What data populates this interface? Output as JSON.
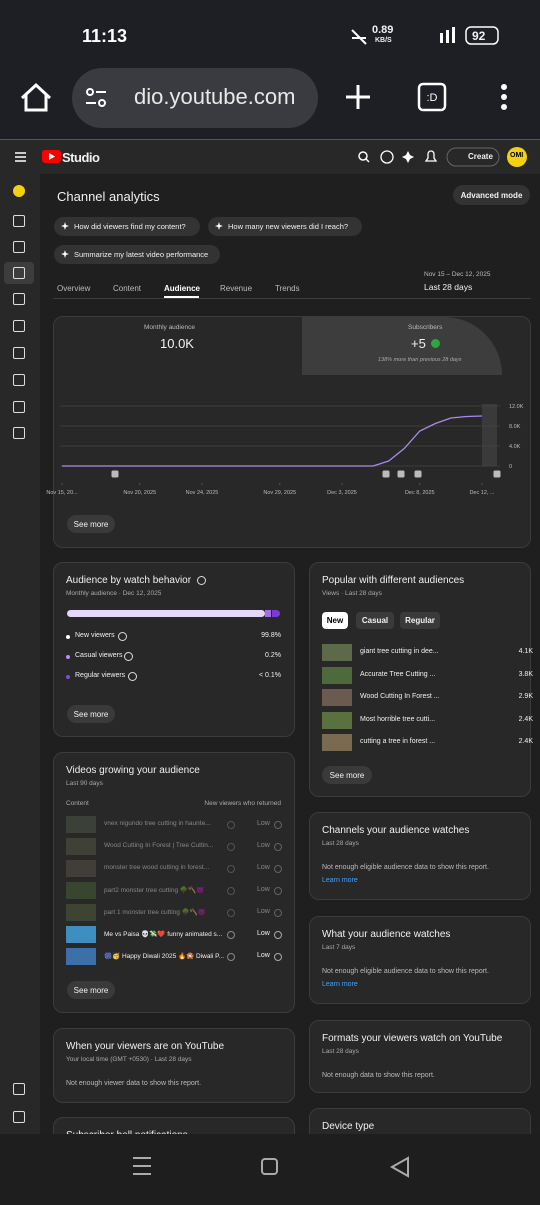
{
  "status_bar": {
    "time": "11:13",
    "speed": "0.89",
    "speed_unit": "KB/S",
    "battery": "92"
  },
  "browser": {
    "url": "dio.youtube.com"
  },
  "header": {
    "brand": "Studio",
    "create": "Create",
    "avatar": "OMI"
  },
  "page": {
    "title": "Channel analytics",
    "advanced": "Advanced mode",
    "prompts": [
      "How did viewers find my content?",
      "How many new viewers did I reach?",
      "Summarize my latest video performance"
    ],
    "tabs": [
      "Overview",
      "Content",
      "Audience",
      "Revenue",
      "Trends"
    ],
    "date_range": "Nov 15 – Dec 12, 2025",
    "period": "Last 28 days"
  },
  "overview": {
    "metric_label": "Monthly audience",
    "metric_value": "10.0K",
    "subs_label": "Subscribers",
    "subs_value": "+5",
    "subs_note": "138% more than previous 28 days",
    "see_more": "See more"
  },
  "chart_data": {
    "type": "line",
    "color": "#a98be8",
    "values": [
      0,
      0,
      0,
      0,
      0,
      0,
      0,
      0,
      0,
      0,
      0,
      0,
      0,
      0,
      0,
      0,
      0,
      0,
      0,
      0,
      0,
      1000,
      3500,
      7000,
      8500,
      9600,
      9900,
      10000
    ],
    "xlim": [
      0,
      27
    ],
    "xticks": [
      {
        "value": 0,
        "label": "Nov 15, 20..."
      },
      {
        "value": 5,
        "label": "Nov 20, 2025"
      },
      {
        "value": 9,
        "label": "Nov 24, 2025"
      },
      {
        "value": 14,
        "label": "Nov 29, 2025"
      },
      {
        "value": 18,
        "label": "Dec 3, 2025"
      },
      {
        "value": 23,
        "label": "Dec 8, 2025"
      },
      {
        "value": 27,
        "label": "Dec 12, ..."
      }
    ],
    "ylim": [
      0,
      12000
    ],
    "yticks": [
      0,
      {
        "value": 4000,
        "label": "4.0K"
      },
      {
        "value": 8000,
        "label": "8.0K"
      },
      {
        "value": 12000,
        "label": "12.0K"
      }
    ],
    "grid": true
  },
  "watch_behavior": {
    "title": "Audience by watch behavior",
    "subtitle": "Monthly audience · Dec 12, 2025",
    "rows": [
      {
        "name": "New viewers",
        "value": "99.8%"
      },
      {
        "name": "Casual viewers",
        "value": "0.2%"
      },
      {
        "name": "Regular viewers",
        "value": "< 0.1%"
      }
    ],
    "see_more": "See more"
  },
  "popular": {
    "title": "Popular with different audiences",
    "subtitle": "Views · Last 28 days",
    "filters": [
      "New",
      "Casual",
      "Regular"
    ],
    "items": [
      "giant tree cutting in dee...",
      "Accurate Tree Cutting ...",
      "Wood Cutting In Forest ...",
      "Most horrible tree cutti...",
      "cutting a tree in forest ..."
    ],
    "values": [
      4100,
      3800,
      2900,
      2400,
      2400
    ],
    "value_labels": [
      "4.1K",
      "3.8K",
      "2.9K",
      "2.4K",
      "2.4K"
    ],
    "see_more": "See more"
  },
  "videos_growing": {
    "title": "Videos growing your audience",
    "subtitle": "Last 90 days",
    "col_content": "Content",
    "col_metric": "New viewers who returned",
    "rows": [
      {
        "title": "vnex nigundo tree cutting in haunte...",
        "status": "Low"
      },
      {
        "title": "Wood Cutting In Forest | Tree Cuttin...",
        "status": "Low"
      },
      {
        "title": "monster tree wood cutting in forest...",
        "status": "Low"
      },
      {
        "title": "part2 monster tree cutting 🌳🪓😈",
        "status": "Low"
      },
      {
        "title": "part 1 monster tree cutting 🌳🪓😈",
        "status": "Low"
      },
      {
        "title": "Me vs Paisa 💀💸❤️ funny animated s...",
        "status": "Low"
      },
      {
        "title": "🎆🥳 Happy Diwali 2025 🔥🎇 Diwali P...",
        "status": "Low"
      }
    ],
    "see_more": "See more"
  },
  "channels": {
    "title": "Channels your audience watches",
    "subtitle": "Last 28 days",
    "text": "Not enough eligible audience data to show this report.",
    "link": "Learn more"
  },
  "what_watch": {
    "title": "What your audience watches",
    "subtitle": "Last 7 days",
    "text": "Not enough eligible audience data to show this report.",
    "link": "Learn more"
  },
  "when_on": {
    "title": "When your viewers are on YouTube",
    "subtitle": "Your local time (GMT +0530) · Last 28 days",
    "text": "Not enough viewer data to show this report."
  },
  "formats": {
    "title": "Formats your viewers watch on YouTube",
    "subtitle": "Last 28 days",
    "text": "Not enough data to show this report."
  },
  "bell": {
    "title": "Subscriber bell notifications"
  },
  "device": {
    "title": "Device type"
  }
}
